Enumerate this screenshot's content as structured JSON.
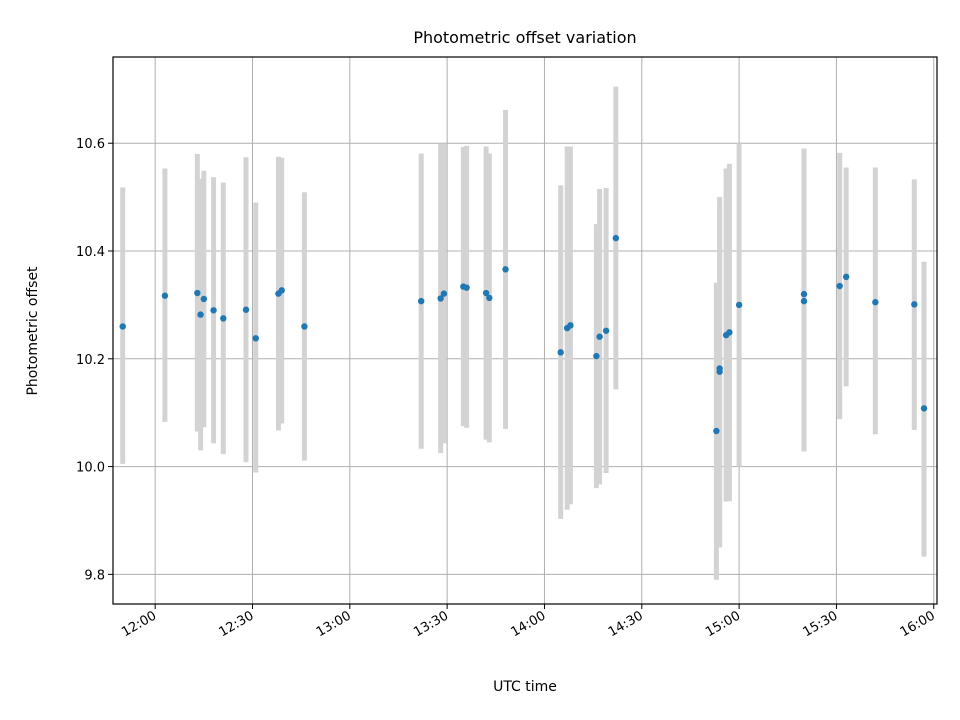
{
  "chart_data": {
    "type": "scatter",
    "title": "Photometric offset variation",
    "xlabel": "UTC time",
    "ylabel": "Photometric offset",
    "x_ticks": [
      "12:00",
      "12:30",
      "13:00",
      "13:30",
      "14:00",
      "14:30",
      "15:00",
      "15:30",
      "16:00"
    ],
    "y_ticks": [
      "9.8",
      "10.0",
      "10.2",
      "10.4",
      "10.6"
    ],
    "xlim": [
      "11:47",
      "16:01"
    ],
    "ylim": [
      9.745,
      10.76
    ],
    "grid": true,
    "colors": {
      "marker": "#1f77b4",
      "errorbar": "#d3d3d3",
      "grid": "#b0b0b0"
    },
    "points": [
      {
        "t": "11:50",
        "y": 10.26,
        "ylow": 10.005,
        "yhigh": 10.518
      },
      {
        "t": "12:03",
        "y": 10.317,
        "ylow": 10.083,
        "yhigh": 10.553
      },
      {
        "t": "12:13",
        "y": 10.322,
        "ylow": 10.065,
        "yhigh": 10.58
      },
      {
        "t": "12:14",
        "y": 10.282,
        "ylow": 10.03,
        "yhigh": 10.534
      },
      {
        "t": "12:15",
        "y": 10.311,
        "ylow": 10.073,
        "yhigh": 10.549
      },
      {
        "t": "12:18",
        "y": 10.29,
        "ylow": 10.043,
        "yhigh": 10.537
      },
      {
        "t": "12:21",
        "y": 10.275,
        "ylow": 10.023,
        "yhigh": 10.527
      },
      {
        "t": "12:28",
        "y": 10.291,
        "ylow": 10.008,
        "yhigh": 10.574
      },
      {
        "t": "12:31",
        "y": 10.238,
        "ylow": 9.989,
        "yhigh": 10.49
      },
      {
        "t": "12:38",
        "y": 10.321,
        "ylow": 10.067,
        "yhigh": 10.575
      },
      {
        "t": "12:39",
        "y": 10.327,
        "ylow": 10.08,
        "yhigh": 10.573
      },
      {
        "t": "12:46",
        "y": 10.26,
        "ylow": 10.011,
        "yhigh": 10.509
      },
      {
        "t": "13:22",
        "y": 10.307,
        "ylow": 10.033,
        "yhigh": 10.581
      },
      {
        "t": "13:28",
        "y": 10.312,
        "ylow": 10.025,
        "yhigh": 10.599
      },
      {
        "t": "13:29",
        "y": 10.321,
        "ylow": 10.043,
        "yhigh": 10.599
      },
      {
        "t": "13:35",
        "y": 10.334,
        "ylow": 10.075,
        "yhigh": 10.593
      },
      {
        "t": "13:36",
        "y": 10.332,
        "ylow": 10.072,
        "yhigh": 10.595
      },
      {
        "t": "13:42",
        "y": 10.322,
        "ylow": 10.05,
        "yhigh": 10.594
      },
      {
        "t": "13:43",
        "y": 10.313,
        "ylow": 10.045,
        "yhigh": 10.581
      },
      {
        "t": "13:48",
        "y": 10.366,
        "ylow": 10.07,
        "yhigh": 10.662
      },
      {
        "t": "14:05",
        "y": 10.212,
        "ylow": 9.903,
        "yhigh": 10.522
      },
      {
        "t": "14:07",
        "y": 10.257,
        "ylow": 9.92,
        "yhigh": 10.594
      },
      {
        "t": "14:08",
        "y": 10.262,
        "ylow": 9.93,
        "yhigh": 10.594
      },
      {
        "t": "14:16",
        "y": 10.205,
        "ylow": 9.96,
        "yhigh": 10.45
      },
      {
        "t": "14:17",
        "y": 10.241,
        "ylow": 9.967,
        "yhigh": 10.515
      },
      {
        "t": "14:19",
        "y": 10.252,
        "ylow": 9.988,
        "yhigh": 10.517
      },
      {
        "t": "14:22",
        "y": 10.424,
        "ylow": 10.143,
        "yhigh": 10.705
      },
      {
        "t": "14:53",
        "y": 10.066,
        "ylow": 9.79,
        "yhigh": 10.341
      },
      {
        "t": "14:54",
        "y": 10.176,
        "ylow": 9.85,
        "yhigh": 10.49
      },
      {
        "t": "14:54",
        "y": 10.182,
        "ylow": 9.867,
        "yhigh": 10.5
      },
      {
        "t": "14:56",
        "y": 10.244,
        "ylow": 9.935,
        "yhigh": 10.553
      },
      {
        "t": "14:57",
        "y": 10.249,
        "ylow": 9.936,
        "yhigh": 10.562
      },
      {
        "t": "15:00",
        "y": 10.3,
        "ylow": 10.0,
        "yhigh": 10.6
      },
      {
        "t": "15:20",
        "y": 10.307,
        "ylow": 10.028,
        "yhigh": 10.59
      },
      {
        "t": "15:20",
        "y": 10.32,
        "ylow": 10.05,
        "yhigh": 10.59
      },
      {
        "t": "15:31",
        "y": 10.335,
        "ylow": 10.088,
        "yhigh": 10.582
      },
      {
        "t": "15:33",
        "y": 10.352,
        "ylow": 10.149,
        "yhigh": 10.555
      },
      {
        "t": "15:42",
        "y": 10.305,
        "ylow": 10.06,
        "yhigh": 10.555
      },
      {
        "t": "15:54",
        "y": 10.301,
        "ylow": 10.068,
        "yhigh": 10.533
      },
      {
        "t": "15:57",
        "y": 10.108,
        "ylow": 9.833,
        "yhigh": 10.38
      }
    ]
  }
}
